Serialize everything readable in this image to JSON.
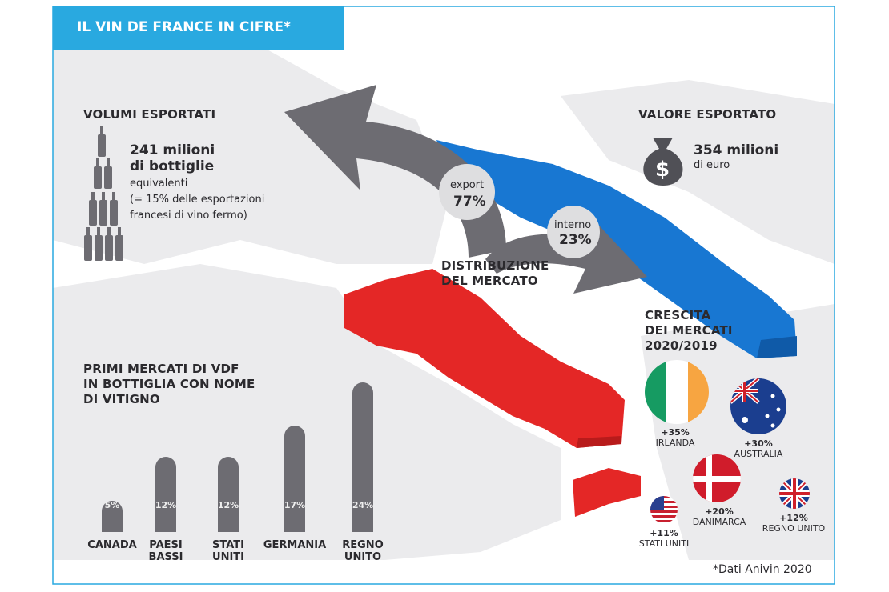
{
  "header": {
    "title": "IL VIN DE FRANCE IN CIFRE*"
  },
  "volumes": {
    "title": "VOLUMI ESPORTATI",
    "amount": "241 milioni",
    "unit": "di bottiglie",
    "note_lines": [
      "equivalenti",
      "(= 15% delle esportazioni",
      "francesi di vino fermo)"
    ]
  },
  "value": {
    "title": "VALORE ESPORTATO",
    "amount": "354 milioni",
    "unit": "di euro"
  },
  "distribution": {
    "title_lines": [
      "DISTRIBUZIONE",
      "DEL MERCATO"
    ],
    "export": {
      "label": "export",
      "share": "77%"
    },
    "domestic": {
      "label": "interno",
      "share": "23%"
    }
  },
  "growth": {
    "title_lines": [
      "CRESCITA",
      "DEI MERCATI",
      "2020/2019"
    ],
    "markets": [
      {
        "change": "+35%",
        "name": "IRLANDA"
      },
      {
        "change": "+30%",
        "name": "AUSTRALIA"
      },
      {
        "change": "+20%",
        "name": "DANIMARCA"
      },
      {
        "change": "+12%",
        "name": "REGNO UNITO"
      },
      {
        "change": "+11%",
        "name": "STATI UNITI"
      }
    ]
  },
  "chart_data": {
    "type": "bar",
    "title_lines": [
      "PRIMI MERCATI DI VDF",
      "IN BOTTIGLIA CON NOME",
      "DI VITIGNO"
    ],
    "categories": [
      "CANADA",
      "PAESI BASSI",
      "STATI UNITI",
      "GERMANIA",
      "REGNO UNITO"
    ],
    "values": [
      5,
      12,
      12,
      17,
      24
    ],
    "value_labels": [
      "5%",
      "12%",
      "12%",
      "17%",
      "24%"
    ],
    "color": "#6d6c72"
  },
  "footnote": "*Dati Anivin 2020"
}
